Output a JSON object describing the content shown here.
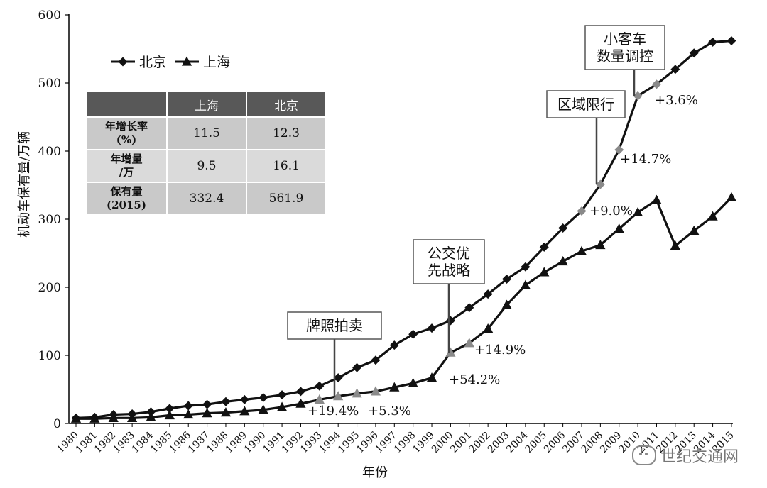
{
  "chart_data": {
    "type": "line",
    "xlabel": "年份",
    "ylabel": "机动车保有量/万辆",
    "ylim": [
      0,
      600
    ],
    "yticks": [
      0,
      100,
      200,
      300,
      400,
      500,
      600
    ],
    "x": [
      "1980",
      "1981",
      "1982",
      "1983",
      "1984",
      "1985",
      "1986",
      "1987",
      "1988",
      "1989",
      "1990",
      "1991",
      "1992",
      "1993",
      "1994",
      "1995",
      "1996",
      "1997",
      "1998",
      "1999",
      "2000",
      "2001",
      "2002",
      "2003",
      "2004",
      "2005",
      "2006",
      "2007",
      "2008",
      "2009",
      "2010",
      "2011",
      "2012",
      "2013",
      "2014",
      "2015"
    ],
    "series": [
      {
        "name": "北京",
        "marker": "diamond",
        "values": [
          8,
          9,
          13,
          14,
          17,
          22,
          26,
          28,
          32,
          35,
          38,
          42,
          47,
          55,
          67,
          82,
          93,
          115,
          131,
          140,
          151,
          170,
          190,
          212,
          230,
          259,
          287,
          312,
          351,
          402,
          481,
          498,
          520,
          544,
          560,
          562
        ]
      },
      {
        "name": "上海",
        "marker": "triangle",
        "values": [
          7,
          7,
          8,
          8,
          9,
          12,
          13,
          15,
          16,
          18,
          20,
          24,
          29,
          35,
          40,
          44,
          47,
          53,
          59,
          67,
          104,
          118,
          139,
          174,
          203,
          222,
          238,
          253,
          262,
          286,
          310,
          328,
          261,
          283,
          304,
          332
        ]
      }
    ],
    "legend": {
      "placement": "top-left",
      "entries": [
        "北京",
        "上海"
      ]
    },
    "annotations": {
      "boxes": [
        {
          "text_lines": [
            "牌照拍卖"
          ],
          "year": "1994"
        },
        {
          "text_lines": [
            "公交优",
            "先战略"
          ],
          "year": "2000"
        },
        {
          "text_lines": [
            "区域限行"
          ],
          "year": "2008"
        },
        {
          "text_lines": [
            "小客车",
            "数量调控"
          ],
          "year": "2010"
        }
      ],
      "percentages": [
        {
          "text": "+19.4%",
          "year": "1994"
        },
        {
          "text": "+5.3%",
          "year": "1996"
        },
        {
          "text": "+54.2%",
          "year": "2000"
        },
        {
          "text": "+14.9%",
          "year": "2001"
        },
        {
          "text": "+9.0%",
          "year": "2008"
        },
        {
          "text": "+14.7%",
          "year": "2009"
        },
        {
          "text": "+3.6%",
          "year": "2011"
        }
      ]
    },
    "table": {
      "columns": [
        "上海",
        "北京"
      ],
      "rows": [
        {
          "label_lines": [
            "年增长率",
            "(%)"
          ],
          "values": [
            "11.5",
            "12.3"
          ]
        },
        {
          "label_lines": [
            "年增量",
            "/万"
          ],
          "values": [
            "9.5",
            "16.1"
          ]
        },
        {
          "label_lines": [
            "保有量",
            "(2015)"
          ],
          "values": [
            "332.4",
            "561.9"
          ]
        }
      ]
    }
  },
  "watermark": {
    "text": "世纪交通网",
    "icon": "wechat-icon"
  }
}
